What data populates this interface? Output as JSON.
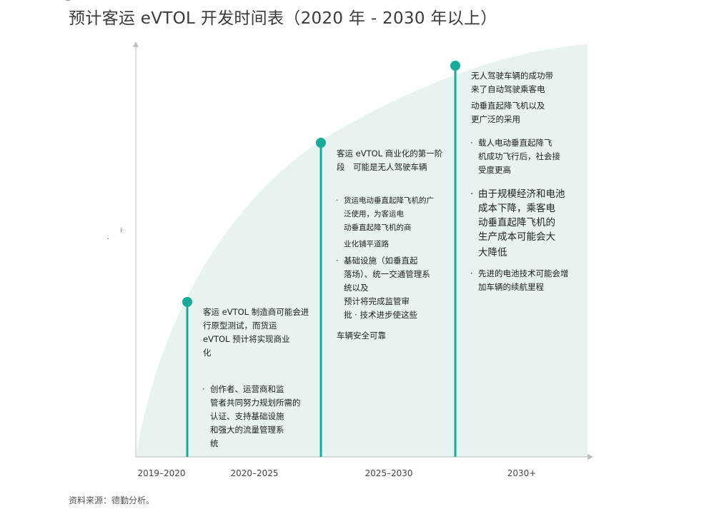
{
  "title": "预计客运 eVTOL 开发时间表（2020 年 - 2030 年以上）",
  "source": "资料来源：德勤分析。",
  "colors": {
    "accent": "#1aaa98",
    "area": "#e6f3f0",
    "axis": "#bdbdbd"
  },
  "axis": {
    "ticks": [
      "2019–2020",
      "2020–2025",
      "2025–2030",
      "2030+"
    ]
  },
  "milestones": [
    {
      "heading": [
        "客运 eVTOL 制造商可能会进",
        "行原型测试，而货运",
        "eVTOL 预计将实现商业",
        "化"
      ],
      "bullets": [
        [
          "创作者、运营商和监",
          "管者共同努力规划所需的",
          "认证、支持基础设施",
          "和强大的流量管理系",
          "统"
        ]
      ]
    },
    {
      "heading": [
        "客运 eVTOL 商业化的第一阶",
        "段　可能是无人驾驶车辆"
      ],
      "bullets": [
        [
          "货运电动垂直起降飞机的广",
          "泛使用，为客运电",
          "动垂直起降飞机的商",
          "业化铺平道路"
        ],
        [
          "基础设施（如垂直起",
          "落场）、统一交通管理系",
          "统以及",
          "预计将完成监管审",
          "批 ·  技术进步使这些"
        ]
      ],
      "tail": "车辆安全可靠"
    },
    {
      "heading": [
        "无人驾驶车辆的成功带",
        "来了自动驾驶乘客电",
        "动垂直起降飞机以及",
        "更广泛的采用"
      ],
      "bullets": [
        [
          "载人电动垂直起降飞",
          "机成功飞行后，社会接",
          "受度更高"
        ],
        [
          "由于规模经济和电池",
          "成本下降，乘客电",
          "动垂直起降飞机的",
          "生产成本可能会大",
          "大降低"
        ],
        [
          "先进的电池技术可能会增",
          "加车辆的续航里程"
        ]
      ]
    }
  ]
}
